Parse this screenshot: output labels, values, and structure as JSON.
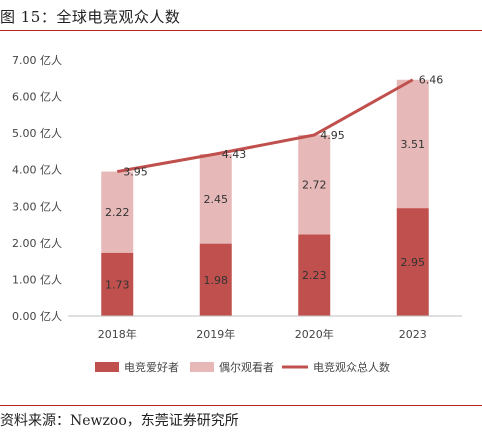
{
  "figure": {
    "title": "图 15：全球电竞观众人数",
    "source": "资料来源：Newzoo，东莞证券研究所"
  },
  "colors": {
    "bar_bottom": "#c0504d",
    "bar_top": "#e6b9b8",
    "line": "#c0504d",
    "rule": "#b22222"
  },
  "chart_data": {
    "type": "bar",
    "stacked": true,
    "categories": [
      "2018年",
      "2019年",
      "2020年",
      "2023"
    ],
    "series": [
      {
        "name": "电竞爱好者",
        "kind": "bar",
        "values": [
          1.73,
          1.98,
          2.23,
          2.95
        ]
      },
      {
        "name": "偶尔观看者",
        "kind": "bar",
        "values": [
          2.22,
          2.45,
          2.72,
          3.51
        ]
      },
      {
        "name": "电竞观众总人数",
        "kind": "line",
        "values": [
          3.95,
          4.43,
          4.95,
          6.46
        ]
      }
    ],
    "ylim": [
      0,
      7
    ],
    "yticks": [
      "0.00 亿人",
      "1.00 亿人",
      "2.00 亿人",
      "3.00 亿人",
      "4.00 亿人",
      "5.00 亿人",
      "6.00 亿人",
      "7.00 亿人"
    ],
    "grid": false,
    "legend_position": "bottom"
  }
}
